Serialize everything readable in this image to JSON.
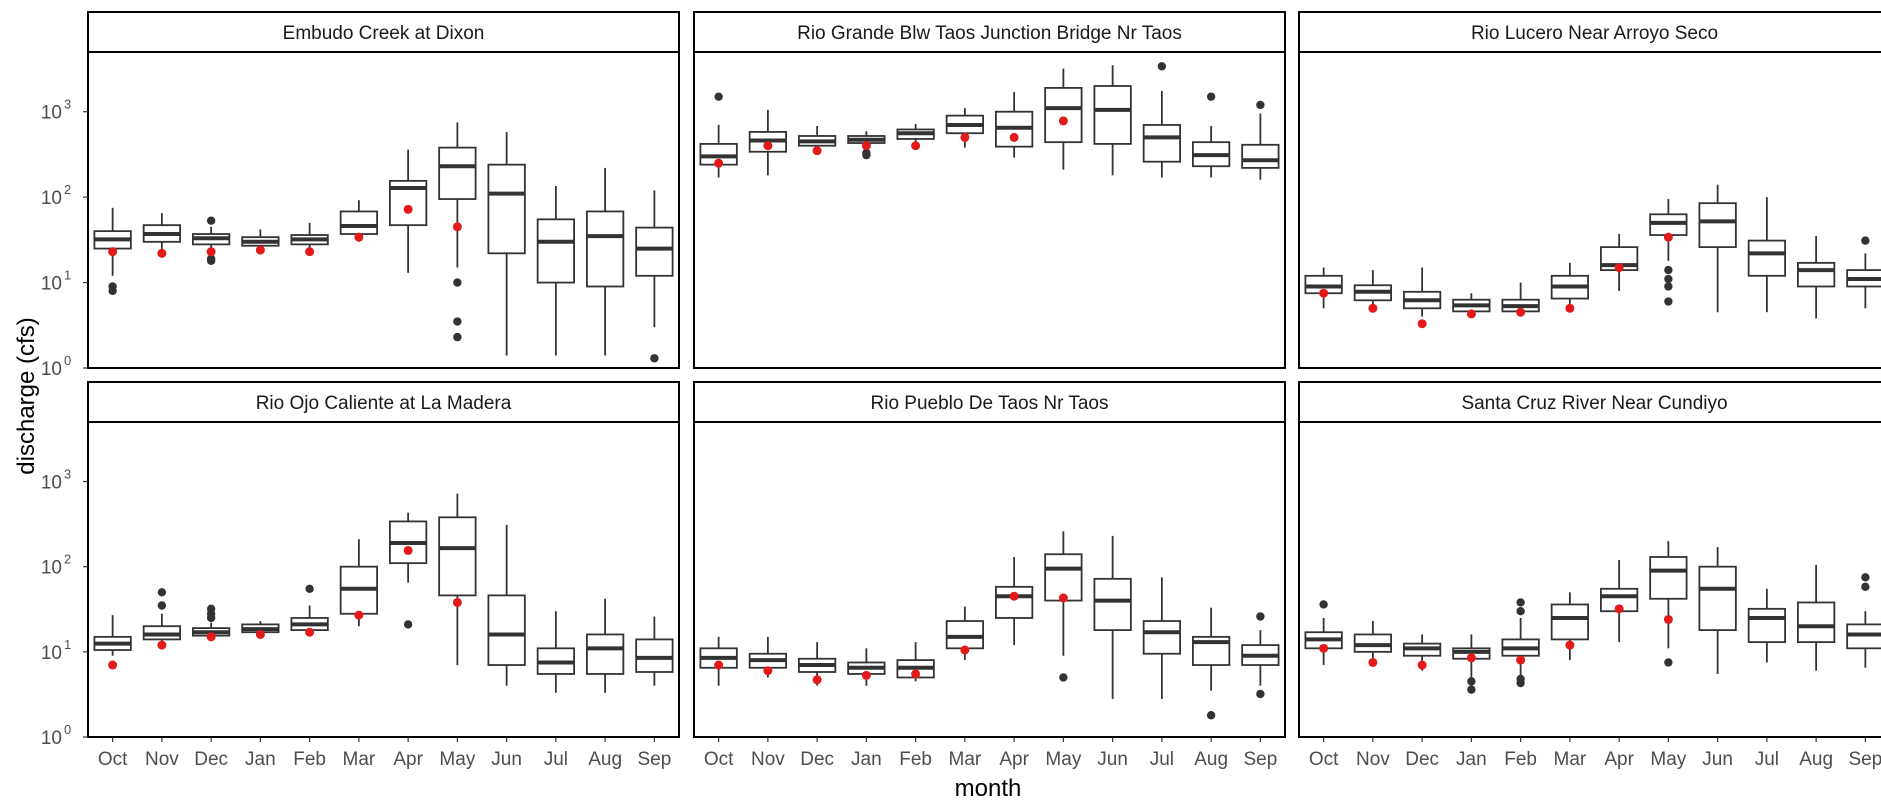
{
  "chart_data": {
    "type": "box",
    "xlabel": "month",
    "ylabel": "discharge (cfs)",
    "yscale": "log10",
    "ylim": [
      1,
      5000
    ],
    "yticks": [
      {
        "value": 1,
        "base": "10",
        "exp": "0"
      },
      {
        "value": 10,
        "base": "10",
        "exp": "1"
      },
      {
        "value": 100,
        "base": "10",
        "exp": "2"
      },
      {
        "value": 1000,
        "base": "10",
        "exp": "3"
      }
    ],
    "categories": [
      "Oct",
      "Nov",
      "Dec",
      "Jan",
      "Feb",
      "Mar",
      "Apr",
      "May",
      "Jun",
      "Jul",
      "Aug",
      "Sep"
    ],
    "colors": {
      "box": "#333333",
      "outlier": "#333333",
      "point": "#e31a1c",
      "strip": "#ffffff",
      "border": "#000000"
    },
    "panels": [
      {
        "title": "Embudo Creek at Dixon",
        "boxes": [
          {
            "month": "Oct",
            "lw": 12,
            "q1": 25,
            "med": 32,
            "q3": 40,
            "uw": 75,
            "out": [
              8,
              9
            ],
            "point": 23
          },
          {
            "month": "Nov",
            "lw": 20,
            "q1": 30,
            "med": 37,
            "q3": 47,
            "uw": 65,
            "out": [],
            "point": 22
          },
          {
            "month": "Dec",
            "lw": 22,
            "q1": 28,
            "med": 33,
            "q3": 37,
            "uw": 45,
            "out": [
              18,
              19,
              53
            ],
            "point": 23
          },
          {
            "month": "Jan",
            "lw": 22,
            "q1": 27,
            "med": 30,
            "q3": 34,
            "uw": 42,
            "out": [],
            "point": 24
          },
          {
            "month": "Feb",
            "lw": 23,
            "q1": 28,
            "med": 32,
            "q3": 36,
            "uw": 50,
            "out": [],
            "point": 23
          },
          {
            "month": "Mar",
            "lw": 30,
            "q1": 37,
            "med": 46,
            "q3": 68,
            "uw": 92,
            "out": [],
            "point": 34
          },
          {
            "month": "Apr",
            "lw": 13,
            "q1": 47,
            "med": 128,
            "q3": 155,
            "uw": 360,
            "out": [],
            "point": 72
          },
          {
            "month": "May",
            "lw": 15,
            "q1": 95,
            "med": 230,
            "q3": 380,
            "uw": 750,
            "out": [
              2.3,
              3.5,
              10
            ],
            "point": 45
          },
          {
            "month": "Jun",
            "lw": 1.4,
            "q1": 22,
            "med": 110,
            "q3": 240,
            "uw": 580,
            "out": [],
            "point": null
          },
          {
            "month": "Jul",
            "lw": 1.4,
            "q1": 10,
            "med": 30,
            "q3": 55,
            "uw": 135,
            "out": [],
            "point": null
          },
          {
            "month": "Aug",
            "lw": 1.4,
            "q1": 9,
            "med": 35,
            "q3": 68,
            "uw": 220,
            "out": [],
            "point": null
          },
          {
            "month": "Sep",
            "lw": 3,
            "q1": 12,
            "med": 25,
            "q3": 44,
            "uw": 120,
            "out": [
              1.3
            ],
            "point": null
          }
        ]
      },
      {
        "title": "Rio Grande Blw Taos Junction Bridge Nr Taos",
        "boxes": [
          {
            "month": "Oct",
            "lw": 170,
            "q1": 240,
            "med": 300,
            "q3": 420,
            "uw": 700,
            "out": [
              1500
            ],
            "point": 250
          },
          {
            "month": "Nov",
            "lw": 180,
            "q1": 340,
            "med": 460,
            "q3": 580,
            "uw": 1050,
            "out": [],
            "point": 400
          },
          {
            "month": "Dec",
            "lw": 320,
            "q1": 400,
            "med": 450,
            "q3": 520,
            "uw": 680,
            "out": [],
            "point": 350
          },
          {
            "month": "Jan",
            "lw": 400,
            "q1": 430,
            "med": 470,
            "q3": 520,
            "uw": 590,
            "out": [
              310,
              330
            ],
            "point": 400
          },
          {
            "month": "Feb",
            "lw": 410,
            "q1": 480,
            "med": 560,
            "q3": 620,
            "uw": 720,
            "out": [],
            "point": 400
          },
          {
            "month": "Mar",
            "lw": 380,
            "q1": 560,
            "med": 700,
            "q3": 900,
            "uw": 1100,
            "out": [],
            "point": 500
          },
          {
            "month": "Apr",
            "lw": 290,
            "q1": 390,
            "med": 650,
            "q3": 1000,
            "uw": 1700,
            "out": [],
            "point": 500
          },
          {
            "month": "May",
            "lw": 210,
            "q1": 440,
            "med": 1100,
            "q3": 1900,
            "uw": 3200,
            "out": [],
            "point": 780
          },
          {
            "month": "Jun",
            "lw": 180,
            "q1": 420,
            "med": 1050,
            "q3": 2000,
            "uw": 3500,
            "out": [],
            "point": null
          },
          {
            "month": "Jul",
            "lw": 170,
            "q1": 260,
            "med": 500,
            "q3": 700,
            "uw": 1750,
            "out": [
              3400
            ],
            "point": null
          },
          {
            "month": "Aug",
            "lw": 170,
            "q1": 230,
            "med": 310,
            "q3": 440,
            "uw": 680,
            "out": [
              1500
            ],
            "point": null
          },
          {
            "month": "Sep",
            "lw": 160,
            "q1": 220,
            "med": 270,
            "q3": 410,
            "uw": 950,
            "out": [
              1200
            ],
            "point": null
          }
        ]
      },
      {
        "title": "Rio Lucero Near Arroyo Seco",
        "boxes": [
          {
            "month": "Oct",
            "lw": 5,
            "q1": 7.5,
            "med": 9,
            "q3": 12,
            "uw": 15,
            "out": [],
            "point": 7.5
          },
          {
            "month": "Nov",
            "lw": 5,
            "q1": 6.2,
            "med": 7.8,
            "q3": 9.3,
            "uw": 14,
            "out": [],
            "point": 5
          },
          {
            "month": "Dec",
            "lw": 4,
            "q1": 5,
            "med": 6.2,
            "q3": 7.8,
            "uw": 15,
            "out": [],
            "point": 3.3
          },
          {
            "month": "Jan",
            "lw": 4,
            "q1": 4.6,
            "med": 5.4,
            "q3": 6.3,
            "uw": 7.5,
            "out": [],
            "point": 4.3
          },
          {
            "month": "Feb",
            "lw": 4,
            "q1": 4.6,
            "med": 5.3,
            "q3": 6.3,
            "uw": 10,
            "out": [],
            "point": 4.5
          },
          {
            "month": "Mar",
            "lw": 5,
            "q1": 6.5,
            "med": 9,
            "q3": 12,
            "uw": 17,
            "out": [],
            "point": 5
          },
          {
            "month": "Apr",
            "lw": 8,
            "q1": 14,
            "med": 16,
            "q3": 26,
            "uw": 37,
            "out": [],
            "point": 15
          },
          {
            "month": "May",
            "lw": 18,
            "q1": 36,
            "med": 50,
            "q3": 63,
            "uw": 95,
            "out": [
              6,
              9,
              11,
              14
            ],
            "point": 34
          },
          {
            "month": "Jun",
            "lw": 4.5,
            "q1": 26,
            "med": 52,
            "q3": 85,
            "uw": 140,
            "out": [],
            "point": null
          },
          {
            "month": "Jul",
            "lw": 4.5,
            "q1": 12,
            "med": 22,
            "q3": 31,
            "uw": 100,
            "out": [],
            "point": null
          },
          {
            "month": "Aug",
            "lw": 3.8,
            "q1": 9,
            "med": 14,
            "q3": 17,
            "uw": 35,
            "out": [],
            "point": null
          },
          {
            "month": "Sep",
            "lw": 5,
            "q1": 9,
            "med": 11,
            "q3": 14,
            "uw": 22,
            "out": [
              31
            ],
            "point": null
          }
        ]
      },
      {
        "title": "Rio Ojo Caliente at La Madera",
        "boxes": [
          {
            "month": "Oct",
            "lw": 9,
            "q1": 10.5,
            "med": 12.5,
            "q3": 15,
            "uw": 27,
            "out": [],
            "point": 7
          },
          {
            "month": "Nov",
            "lw": 12,
            "q1": 14,
            "med": 16,
            "q3": 20,
            "uw": 28,
            "out": [
              35,
              50
            ],
            "point": 12
          },
          {
            "month": "Dec",
            "lw": 14,
            "q1": 15.5,
            "med": 17,
            "q3": 19,
            "uw": 22,
            "out": [
              25,
              28,
              32
            ],
            "point": 15
          },
          {
            "month": "Jan",
            "lw": 16,
            "q1": 17,
            "med": 18.5,
            "q3": 21,
            "uw": 23,
            "out": [],
            "point": 16
          },
          {
            "month": "Feb",
            "lw": 16,
            "q1": 18,
            "med": 21,
            "q3": 25,
            "uw": 35,
            "out": [
              55
            ],
            "point": 17
          },
          {
            "month": "Mar",
            "lw": 20,
            "q1": 28,
            "med": 55,
            "q3": 100,
            "uw": 210,
            "out": [],
            "point": 27
          },
          {
            "month": "Apr",
            "lw": 65,
            "q1": 110,
            "med": 190,
            "q3": 340,
            "uw": 430,
            "out": [
              21
            ],
            "point": 155
          },
          {
            "month": "May",
            "lw": 7,
            "q1": 46,
            "med": 165,
            "q3": 380,
            "uw": 720,
            "out": [],
            "point": 38
          },
          {
            "month": "Jun",
            "lw": 4,
            "q1": 7,
            "med": 16,
            "q3": 46,
            "uw": 310,
            "out": [],
            "point": null
          },
          {
            "month": "Jul",
            "lw": 3.3,
            "q1": 5.5,
            "med": 7.5,
            "q3": 11,
            "uw": 30,
            "out": [],
            "point": null
          },
          {
            "month": "Aug",
            "lw": 3.3,
            "q1": 5.5,
            "med": 11,
            "q3": 16,
            "uw": 42,
            "out": [],
            "point": null
          },
          {
            "month": "Sep",
            "lw": 4,
            "q1": 5.8,
            "med": 8.5,
            "q3": 14,
            "uw": 26,
            "out": [],
            "point": null
          }
        ]
      },
      {
        "title": "Rio Pueblo De Taos Nr Taos",
        "boxes": [
          {
            "month": "Oct",
            "lw": 4,
            "q1": 6.5,
            "med": 8.5,
            "q3": 11,
            "uw": 15,
            "out": [],
            "point": 7
          },
          {
            "month": "Nov",
            "lw": 5,
            "q1": 6.5,
            "med": 8,
            "q3": 9.5,
            "uw": 15,
            "out": [],
            "point": 6
          },
          {
            "month": "Dec",
            "lw": 4,
            "q1": 5.8,
            "med": 7,
            "q3": 8.3,
            "uw": 13,
            "out": [],
            "point": 4.7
          },
          {
            "month": "Jan",
            "lw": 4,
            "q1": 5.5,
            "med": 6.5,
            "q3": 7.5,
            "uw": 11,
            "out": [],
            "point": 5.3
          },
          {
            "month": "Feb",
            "lw": 4.5,
            "q1": 5,
            "med": 6.5,
            "q3": 8,
            "uw": 13,
            "out": [],
            "point": 5.5
          },
          {
            "month": "Mar",
            "lw": 8,
            "q1": 11,
            "med": 15,
            "q3": 23,
            "uw": 34,
            "out": [],
            "point": 10.5
          },
          {
            "month": "Apr",
            "lw": 12,
            "q1": 25,
            "med": 45,
            "q3": 58,
            "uw": 130,
            "out": [],
            "point": 45
          },
          {
            "month": "May",
            "lw": 9,
            "q1": 40,
            "med": 95,
            "q3": 140,
            "uw": 260,
            "out": [
              5
            ],
            "point": 43
          },
          {
            "month": "Jun",
            "lw": 2.8,
            "q1": 18,
            "med": 40,
            "q3": 72,
            "uw": 230,
            "out": [],
            "point": null
          },
          {
            "month": "Jul",
            "lw": 2.8,
            "q1": 9.5,
            "med": 17,
            "q3": 23,
            "uw": 75,
            "out": [],
            "point": null
          },
          {
            "month": "Aug",
            "lw": 3.5,
            "q1": 7,
            "med": 13,
            "q3": 15,
            "uw": 33,
            "out": [
              1.8
            ],
            "point": null
          },
          {
            "month": "Sep",
            "lw": 4,
            "q1": 7,
            "med": 9,
            "q3": 12,
            "uw": 18,
            "out": [
              3.2,
              26
            ],
            "point": null
          }
        ]
      },
      {
        "title": "Santa Cruz River Near Cundiyo",
        "boxes": [
          {
            "month": "Oct",
            "lw": 7,
            "q1": 11,
            "med": 14,
            "q3": 17,
            "uw": 25,
            "out": [
              36
            ],
            "point": 11
          },
          {
            "month": "Nov",
            "lw": 7,
            "q1": 10,
            "med": 12,
            "q3": 16,
            "uw": 23,
            "out": [],
            "point": 7.5
          },
          {
            "month": "Dec",
            "lw": 6,
            "q1": 9,
            "med": 11,
            "q3": 12.5,
            "uw": 16,
            "out": [],
            "point": 7
          },
          {
            "month": "Jan",
            "lw": 5,
            "q1": 8.3,
            "med": 10,
            "q3": 11,
            "uw": 16,
            "out": [
              3.6,
              4.5
            ],
            "point": 8.5
          },
          {
            "month": "Feb",
            "lw": 5,
            "q1": 9,
            "med": 11,
            "q3": 14,
            "uw": 25,
            "out": [
              4.3,
              4.8,
              30,
              38
            ],
            "point": 8
          },
          {
            "month": "Mar",
            "lw": 8,
            "q1": 14,
            "med": 25,
            "q3": 36,
            "uw": 50,
            "out": [],
            "point": 12
          },
          {
            "month": "Apr",
            "lw": 13,
            "q1": 30,
            "med": 45,
            "q3": 55,
            "uw": 120,
            "out": [],
            "point": 32
          },
          {
            "month": "May",
            "lw": 11,
            "q1": 42,
            "med": 90,
            "q3": 130,
            "uw": 200,
            "out": [
              7.5
            ],
            "point": 24
          },
          {
            "month": "Jun",
            "lw": 5.5,
            "q1": 18,
            "med": 55,
            "q3": 100,
            "uw": 170,
            "out": [],
            "point": null
          },
          {
            "month": "Jul",
            "lw": 7.5,
            "q1": 13,
            "med": 25,
            "q3": 32,
            "uw": 55,
            "out": [],
            "point": null
          },
          {
            "month": "Aug",
            "lw": 6,
            "q1": 13,
            "med": 20,
            "q3": 38,
            "uw": 105,
            "out": [],
            "point": null
          },
          {
            "month": "Sep",
            "lw": 6.5,
            "q1": 11,
            "med": 16,
            "q3": 21,
            "uw": 30,
            "out": [
              58,
              75
            ],
            "point": null
          }
        ]
      }
    ]
  }
}
